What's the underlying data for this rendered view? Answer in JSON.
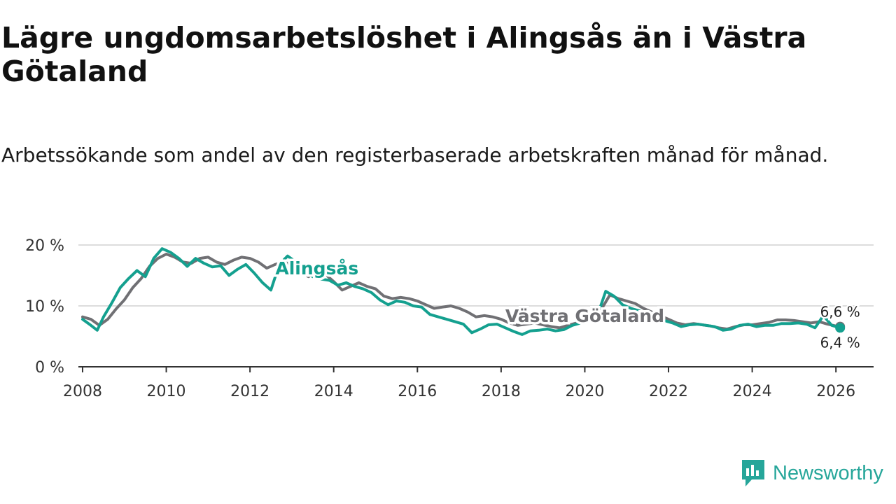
{
  "header": {
    "title": "Lägre ungdomsarbetslöshet i Alingsås än i Västra Götaland",
    "subtitle": "Arbetssökande som andel av den registerbaserade arbetskraften månad för månad."
  },
  "brand": {
    "name": "Newsworthy",
    "color": "#26a69a"
  },
  "colors": {
    "alingsas": "#14a08f",
    "vastra": "#707074",
    "grid": "#dddddd",
    "axis": "#333333"
  },
  "chart_data": {
    "type": "line",
    "title": "Lägre ungdomsarbetslöshet i Alingsås än i Västra Götaland",
    "subtitle": "Arbetssökande som andel av den registerbaserade arbetskraften månad för månad.",
    "xlabel": "",
    "ylabel": "",
    "xlim": [
      2007.9,
      2026.9
    ],
    "ylim": [
      0,
      20
    ],
    "y_ticks": [
      {
        "value": 0,
        "label": "0 %"
      },
      {
        "value": 10,
        "label": "10 %"
      },
      {
        "value": 20,
        "label": "20 %"
      }
    ],
    "x_ticks": [
      {
        "value": 2008,
        "label": "2008"
      },
      {
        "value": 2010,
        "label": "2010"
      },
      {
        "value": 2012,
        "label": "2012"
      },
      {
        "value": 2014,
        "label": "2014"
      },
      {
        "value": 2016,
        "label": "2016"
      },
      {
        "value": 2018,
        "label": "2018"
      },
      {
        "value": 2020,
        "label": "2020"
      },
      {
        "value": 2022,
        "label": "2022"
      },
      {
        "value": 2024,
        "label": "2024"
      },
      {
        "value": 2026,
        "label": "2026"
      }
    ],
    "grid": true,
    "series": [
      {
        "name": "Västra Götaland",
        "label": "Västra Götaland",
        "color": "#707074",
        "points": [
          [
            2008.0,
            8.2
          ],
          [
            2008.2,
            7.8
          ],
          [
            2008.4,
            6.8
          ],
          [
            2008.6,
            7.8
          ],
          [
            2008.8,
            9.5
          ],
          [
            2009.0,
            11.0
          ],
          [
            2009.2,
            13.0
          ],
          [
            2009.4,
            14.5
          ],
          [
            2009.6,
            16.5
          ],
          [
            2009.8,
            17.8
          ],
          [
            2010.0,
            18.5
          ],
          [
            2010.2,
            18.0
          ],
          [
            2010.4,
            17.2
          ],
          [
            2010.6,
            17.0
          ],
          [
            2010.8,
            17.8
          ],
          [
            2011.0,
            18.0
          ],
          [
            2011.2,
            17.2
          ],
          [
            2011.4,
            16.8
          ],
          [
            2011.6,
            17.5
          ],
          [
            2011.8,
            18.0
          ],
          [
            2012.0,
            17.8
          ],
          [
            2012.2,
            17.2
          ],
          [
            2012.4,
            16.2
          ],
          [
            2012.6,
            16.8
          ],
          [
            2012.8,
            17.2
          ],
          [
            2013.0,
            16.8
          ],
          [
            2013.2,
            15.5
          ],
          [
            2013.4,
            14.8
          ],
          [
            2013.6,
            15.8
          ],
          [
            2013.8,
            15.2
          ],
          [
            2014.0,
            14.0
          ],
          [
            2014.2,
            12.6
          ],
          [
            2014.4,
            13.2
          ],
          [
            2014.6,
            13.8
          ],
          [
            2014.8,
            13.2
          ],
          [
            2015.0,
            12.8
          ],
          [
            2015.2,
            11.6
          ],
          [
            2015.4,
            11.2
          ],
          [
            2015.6,
            11.4
          ],
          [
            2015.8,
            11.2
          ],
          [
            2016.0,
            10.8
          ],
          [
            2016.2,
            10.2
          ],
          [
            2016.4,
            9.6
          ],
          [
            2016.6,
            9.8
          ],
          [
            2016.8,
            10.0
          ],
          [
            2017.0,
            9.6
          ],
          [
            2017.2,
            9.0
          ],
          [
            2017.4,
            8.2
          ],
          [
            2017.6,
            8.4
          ],
          [
            2017.8,
            8.2
          ],
          [
            2018.0,
            7.8
          ],
          [
            2018.2,
            7.2
          ],
          [
            2018.4,
            6.8
          ],
          [
            2018.6,
            7.0
          ],
          [
            2018.8,
            7.2
          ],
          [
            2019.0,
            6.9
          ],
          [
            2019.2,
            6.6
          ],
          [
            2019.4,
            6.4
          ],
          [
            2019.6,
            6.8
          ],
          [
            2019.8,
            7.2
          ],
          [
            2020.0,
            7.5
          ],
          [
            2020.2,
            7.8
          ],
          [
            2020.4,
            9.5
          ],
          [
            2020.6,
            11.8
          ],
          [
            2020.8,
            11.2
          ],
          [
            2021.0,
            10.8
          ],
          [
            2021.2,
            10.4
          ],
          [
            2021.4,
            9.6
          ],
          [
            2021.6,
            9.0
          ],
          [
            2021.8,
            8.4
          ],
          [
            2022.0,
            7.8
          ],
          [
            2022.2,
            7.2
          ],
          [
            2022.4,
            6.9
          ],
          [
            2022.6,
            7.1
          ],
          [
            2022.8,
            6.9
          ],
          [
            2023.0,
            6.7
          ],
          [
            2023.2,
            6.4
          ],
          [
            2023.4,
            6.2
          ],
          [
            2023.6,
            6.6
          ],
          [
            2023.8,
            6.9
          ],
          [
            2024.0,
            6.9
          ],
          [
            2024.2,
            7.1
          ],
          [
            2024.4,
            7.3
          ],
          [
            2024.6,
            7.7
          ],
          [
            2024.8,
            7.7
          ],
          [
            2025.0,
            7.6
          ],
          [
            2025.2,
            7.4
          ],
          [
            2025.4,
            7.2
          ],
          [
            2025.6,
            7.4
          ],
          [
            2025.8,
            7.0
          ],
          [
            2026.0,
            6.7
          ],
          [
            2026.1,
            6.6
          ]
        ]
      },
      {
        "name": "Alingsås",
        "label": "Alingsås",
        "color": "#14a08f",
        "points": [
          [
            2008.0,
            7.8
          ],
          [
            2008.2,
            6.8
          ],
          [
            2008.35,
            6.0
          ],
          [
            2008.5,
            8.2
          ],
          [
            2008.7,
            10.5
          ],
          [
            2008.9,
            13.0
          ],
          [
            2009.1,
            14.5
          ],
          [
            2009.3,
            15.8
          ],
          [
            2009.5,
            14.8
          ],
          [
            2009.7,
            17.8
          ],
          [
            2009.9,
            19.4
          ],
          [
            2010.1,
            18.8
          ],
          [
            2010.3,
            17.8
          ],
          [
            2010.5,
            16.5
          ],
          [
            2010.7,
            17.8
          ],
          [
            2010.9,
            17.0
          ],
          [
            2011.1,
            16.4
          ],
          [
            2011.3,
            16.6
          ],
          [
            2011.5,
            15.0
          ],
          [
            2011.7,
            16.0
          ],
          [
            2011.9,
            16.8
          ],
          [
            2012.1,
            15.4
          ],
          [
            2012.3,
            13.8
          ],
          [
            2012.5,
            12.6
          ],
          [
            2012.7,
            16.8
          ],
          [
            2012.9,
            18.2
          ],
          [
            2013.1,
            17.2
          ],
          [
            2013.3,
            15.8
          ],
          [
            2013.5,
            14.8
          ],
          [
            2013.7,
            14.4
          ],
          [
            2013.9,
            14.2
          ],
          [
            2014.1,
            13.4
          ],
          [
            2014.3,
            13.8
          ],
          [
            2014.5,
            13.2
          ],
          [
            2014.7,
            12.8
          ],
          [
            2014.9,
            12.2
          ],
          [
            2015.1,
            11.0
          ],
          [
            2015.3,
            10.2
          ],
          [
            2015.5,
            10.8
          ],
          [
            2015.7,
            10.6
          ],
          [
            2015.9,
            10.0
          ],
          [
            2016.1,
            9.8
          ],
          [
            2016.3,
            8.6
          ],
          [
            2016.5,
            8.2
          ],
          [
            2016.7,
            7.8
          ],
          [
            2016.9,
            7.4
          ],
          [
            2017.1,
            7.0
          ],
          [
            2017.3,
            5.6
          ],
          [
            2017.5,
            6.2
          ],
          [
            2017.7,
            6.9
          ],
          [
            2017.9,
            7.0
          ],
          [
            2018.1,
            6.4
          ],
          [
            2018.3,
            5.8
          ],
          [
            2018.5,
            5.3
          ],
          [
            2018.7,
            5.9
          ],
          [
            2018.9,
            6.0
          ],
          [
            2019.1,
            6.2
          ],
          [
            2019.3,
            5.9
          ],
          [
            2019.5,
            6.1
          ],
          [
            2019.7,
            6.8
          ],
          [
            2019.9,
            7.2
          ],
          [
            2020.1,
            8.0
          ],
          [
            2020.3,
            8.4
          ],
          [
            2020.5,
            12.4
          ],
          [
            2020.7,
            11.6
          ],
          [
            2020.9,
            10.2
          ],
          [
            2021.1,
            9.6
          ],
          [
            2021.3,
            9.2
          ],
          [
            2021.5,
            8.6
          ],
          [
            2021.7,
            8.0
          ],
          [
            2021.9,
            7.6
          ],
          [
            2022.1,
            7.2
          ],
          [
            2022.3,
            6.6
          ],
          [
            2022.5,
            6.9
          ],
          [
            2022.7,
            7.0
          ],
          [
            2022.9,
            6.8
          ],
          [
            2023.1,
            6.6
          ],
          [
            2023.3,
            6.0
          ],
          [
            2023.5,
            6.2
          ],
          [
            2023.7,
            6.8
          ],
          [
            2023.9,
            7.0
          ],
          [
            2024.1,
            6.6
          ],
          [
            2024.3,
            6.8
          ],
          [
            2024.5,
            6.8
          ],
          [
            2024.7,
            7.1
          ],
          [
            2024.9,
            7.1
          ],
          [
            2025.1,
            7.2
          ],
          [
            2025.3,
            7.0
          ],
          [
            2025.5,
            6.4
          ],
          [
            2025.7,
            8.4
          ],
          [
            2025.9,
            6.8
          ],
          [
            2026.0,
            6.6
          ],
          [
            2026.1,
            6.4
          ]
        ]
      }
    ],
    "annotations": [
      {
        "series": "Alingsås",
        "text": "Alingsås",
        "at": [
          2013.6,
          16.3
        ]
      },
      {
        "series": "Västra Götaland",
        "text": "Västra Götaland",
        "at": [
          2020.0,
          8.5
        ]
      },
      {
        "series": "Västra Götaland",
        "text": "6,6 %",
        "at": [
          2026.1,
          6.6
        ],
        "kind": "end-label"
      },
      {
        "series": "Alingsås",
        "text": "6,4 %",
        "at": [
          2026.1,
          6.4
        ],
        "kind": "end-label"
      }
    ]
  }
}
